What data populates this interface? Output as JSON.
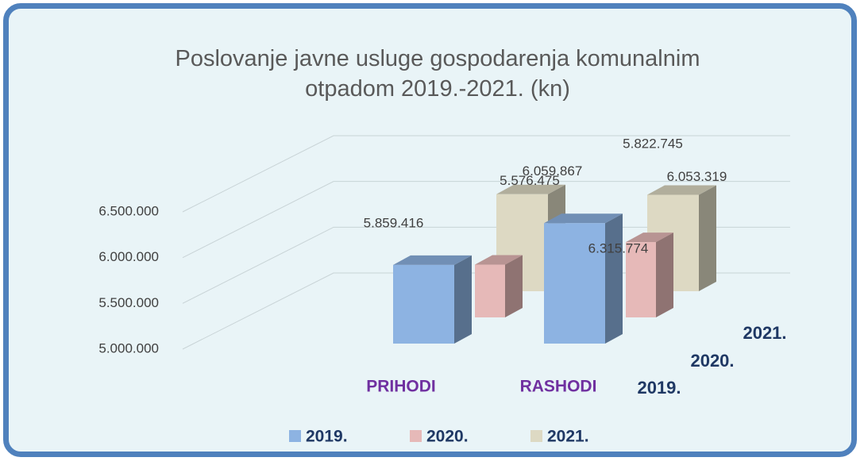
{
  "chart_data": {
    "type": "bar3d",
    "title": "Poslovanje javne usluge gospodarenja komunalnim otpadom 2019.-2021. (kn)",
    "categories": [
      "PRIHODI",
      "RASHODI"
    ],
    "series": [
      {
        "name": "2019.",
        "color": "#8db3e2",
        "values": [
          5859416,
          6315774
        ],
        "value_labels": [
          "5.859.416",
          "6.315.774"
        ]
      },
      {
        "name": "2020.",
        "color": "#e6b9b8",
        "values": [
          5576475,
          5822745
        ],
        "value_labels": [
          "5.576.475",
          "5.822.745"
        ]
      },
      {
        "name": "2021.",
        "color": "#ddd9c3",
        "values": [
          6059867,
          6053319
        ],
        "value_labels": [
          "6.059.867",
          "6.053.319"
        ]
      }
    ],
    "ylim": [
      5000000,
      6500000
    ],
    "yticks": [
      {
        "value": 5000000,
        "label": "5.000.000"
      },
      {
        "value": 5500000,
        "label": "5.500.000"
      },
      {
        "value": 6000000,
        "label": "6.000.000"
      },
      {
        "value": 6500000,
        "label": "6.500.000"
      }
    ],
    "grid": true,
    "legend": "bottom"
  }
}
